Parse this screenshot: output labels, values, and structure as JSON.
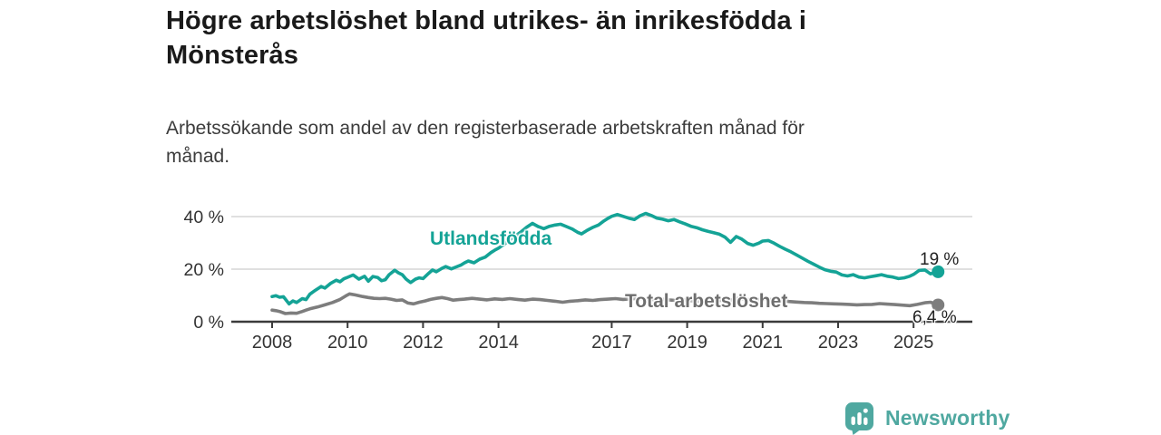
{
  "colors": {
    "accent_teal": "#14a396",
    "line_gray": "#7d7d7d",
    "label_gray": "#6e6e6e",
    "axis": "#3b3b3b",
    "grid": "#d6d6d6",
    "tick_text": "#333333",
    "title_text": "#1a1a1a",
    "brand_teal": "#4fa8a0"
  },
  "chart_data": {
    "type": "line",
    "title": "Högre arbetslöshet bland utrikes- än inrikesfödda i Mönsterås",
    "subtitle": "Arbetssökande som andel av den registerbaserade arbetskraften månad för månad.",
    "legend": "inline-labels-on-lines",
    "grid": true,
    "x_axis": {
      "tick_labels": [
        "2008",
        "2010",
        "2012",
        "2014",
        "2017",
        "2019",
        "2021",
        "2023",
        "2025"
      ],
      "tick_values": [
        2008,
        2010,
        2012,
        2014,
        2017,
        2019,
        2021,
        2023,
        2025
      ],
      "range": [
        2007.1,
        2026.5
      ]
    },
    "y_axis": {
      "unit": "%",
      "tick_labels": [
        "0 %",
        "20 %",
        "40 %"
      ],
      "tick_values": [
        0,
        20,
        40
      ],
      "range": [
        0,
        43.5
      ]
    },
    "series": [
      {
        "id": "utlandsfodda",
        "name": "Utlandsfödda",
        "color": "#14a396",
        "end_value": 19,
        "end_label": "19 %",
        "points": [
          [
            2008.0,
            9.6
          ],
          [
            2008.1,
            9.9
          ],
          [
            2008.2,
            9.3
          ],
          [
            2008.3,
            9.5
          ],
          [
            2008.45,
            6.8
          ],
          [
            2008.55,
            7.9
          ],
          [
            2008.65,
            7.3
          ],
          [
            2008.8,
            8.8
          ],
          [
            2008.9,
            8.4
          ],
          [
            2009.0,
            10.5
          ],
          [
            2009.15,
            12.0
          ],
          [
            2009.3,
            13.4
          ],
          [
            2009.4,
            12.8
          ],
          [
            2009.55,
            14.6
          ],
          [
            2009.7,
            15.8
          ],
          [
            2009.8,
            15.2
          ],
          [
            2009.9,
            16.3
          ],
          [
            2010.0,
            16.9
          ],
          [
            2010.15,
            17.8
          ],
          [
            2010.3,
            16.2
          ],
          [
            2010.45,
            17.3
          ],
          [
            2010.55,
            15.4
          ],
          [
            2010.67,
            17.2
          ],
          [
            2010.8,
            16.8
          ],
          [
            2010.9,
            15.6
          ],
          [
            2011.0,
            16.0
          ],
          [
            2011.1,
            17.9
          ],
          [
            2011.25,
            19.6
          ],
          [
            2011.35,
            18.6
          ],
          [
            2011.45,
            17.9
          ],
          [
            2011.55,
            16.2
          ],
          [
            2011.67,
            14.9
          ],
          [
            2011.8,
            16.2
          ],
          [
            2011.9,
            16.7
          ],
          [
            2012.0,
            16.4
          ],
          [
            2012.15,
            18.4
          ],
          [
            2012.25,
            19.7
          ],
          [
            2012.35,
            19.0
          ],
          [
            2012.5,
            20.3
          ],
          [
            2012.6,
            21.0
          ],
          [
            2012.75,
            20.1
          ],
          [
            2012.85,
            20.7
          ],
          [
            2013.0,
            21.5
          ],
          [
            2013.1,
            22.4
          ],
          [
            2013.2,
            23.1
          ],
          [
            2013.35,
            22.4
          ],
          [
            2013.5,
            23.8
          ],
          [
            2013.65,
            24.6
          ],
          [
            2013.8,
            26.3
          ],
          [
            2013.9,
            27.2
          ],
          [
            2014.0,
            28.0
          ],
          [
            2014.2,
            30.0
          ],
          [
            2014.4,
            32.2
          ],
          [
            2014.6,
            34.2
          ],
          [
            2014.75,
            36.0
          ],
          [
            2014.9,
            37.4
          ],
          [
            2015.05,
            36.2
          ],
          [
            2015.2,
            35.4
          ],
          [
            2015.35,
            36.3
          ],
          [
            2015.5,
            36.8
          ],
          [
            2015.65,
            37.1
          ],
          [
            2015.8,
            36.2
          ],
          [
            2015.95,
            35.3
          ],
          [
            2016.1,
            34.0
          ],
          [
            2016.2,
            33.4
          ],
          [
            2016.35,
            34.8
          ],
          [
            2016.5,
            35.9
          ],
          [
            2016.65,
            36.8
          ],
          [
            2016.8,
            38.4
          ],
          [
            2016.9,
            39.3
          ],
          [
            2017.0,
            40.1
          ],
          [
            2017.15,
            40.8
          ],
          [
            2017.3,
            40.1
          ],
          [
            2017.45,
            39.4
          ],
          [
            2017.6,
            38.9
          ],
          [
            2017.75,
            40.3
          ],
          [
            2017.9,
            41.2
          ],
          [
            2018.05,
            40.4
          ],
          [
            2018.2,
            39.4
          ],
          [
            2018.35,
            39.0
          ],
          [
            2018.5,
            38.4
          ],
          [
            2018.65,
            38.9
          ],
          [
            2018.8,
            38.0
          ],
          [
            2018.95,
            37.2
          ],
          [
            2019.1,
            36.3
          ],
          [
            2019.25,
            35.8
          ],
          [
            2019.4,
            35.0
          ],
          [
            2019.55,
            34.4
          ],
          [
            2019.7,
            33.9
          ],
          [
            2019.85,
            33.3
          ],
          [
            2020.0,
            32.2
          ],
          [
            2020.15,
            30.2
          ],
          [
            2020.3,
            32.4
          ],
          [
            2020.45,
            31.4
          ],
          [
            2020.6,
            29.8
          ],
          [
            2020.75,
            29.1
          ],
          [
            2020.9,
            29.9
          ],
          [
            2021.0,
            30.7
          ],
          [
            2021.15,
            30.9
          ],
          [
            2021.3,
            29.9
          ],
          [
            2021.45,
            28.7
          ],
          [
            2021.6,
            27.6
          ],
          [
            2021.75,
            26.6
          ],
          [
            2021.9,
            25.4
          ],
          [
            2022.05,
            24.2
          ],
          [
            2022.2,
            23.0
          ],
          [
            2022.35,
            21.9
          ],
          [
            2022.5,
            20.8
          ],
          [
            2022.65,
            19.8
          ],
          [
            2022.8,
            19.2
          ],
          [
            2022.95,
            18.9
          ],
          [
            2023.1,
            17.8
          ],
          [
            2023.25,
            17.4
          ],
          [
            2023.4,
            17.9
          ],
          [
            2023.55,
            17.0
          ],
          [
            2023.7,
            16.7
          ],
          [
            2023.85,
            17.1
          ],
          [
            2024.0,
            17.5
          ],
          [
            2024.15,
            17.9
          ],
          [
            2024.3,
            17.3
          ],
          [
            2024.45,
            17.0
          ],
          [
            2024.6,
            16.4
          ],
          [
            2024.75,
            16.7
          ],
          [
            2024.9,
            17.3
          ],
          [
            2025.0,
            18.0
          ],
          [
            2025.15,
            19.5
          ],
          [
            2025.3,
            19.7
          ],
          [
            2025.45,
            18.2
          ],
          [
            2025.65,
            19.0
          ]
        ]
      },
      {
        "id": "total",
        "name": "Total arbetslöshet",
        "color": "#7d7d7d",
        "end_value": 6.4,
        "end_label": "6,4 %",
        "points": [
          [
            2008.0,
            4.4
          ],
          [
            2008.1,
            4.2
          ],
          [
            2008.2,
            3.9
          ],
          [
            2008.35,
            3.1
          ],
          [
            2008.5,
            3.3
          ],
          [
            2008.65,
            3.2
          ],
          [
            2008.8,
            3.9
          ],
          [
            2008.9,
            4.4
          ],
          [
            2009.0,
            4.9
          ],
          [
            2009.2,
            5.6
          ],
          [
            2009.4,
            6.4
          ],
          [
            2009.6,
            7.3
          ],
          [
            2009.8,
            8.5
          ],
          [
            2009.95,
            9.8
          ],
          [
            2010.05,
            10.6
          ],
          [
            2010.2,
            10.2
          ],
          [
            2010.4,
            9.6
          ],
          [
            2010.55,
            9.2
          ],
          [
            2010.7,
            8.9
          ],
          [
            2010.85,
            8.8
          ],
          [
            2011.0,
            8.9
          ],
          [
            2011.15,
            8.6
          ],
          [
            2011.3,
            8.1
          ],
          [
            2011.45,
            8.3
          ],
          [
            2011.6,
            7.1
          ],
          [
            2011.75,
            6.8
          ],
          [
            2011.9,
            7.4
          ],
          [
            2012.05,
            7.9
          ],
          [
            2012.2,
            8.5
          ],
          [
            2012.35,
            8.9
          ],
          [
            2012.5,
            9.2
          ],
          [
            2012.65,
            8.8
          ],
          [
            2012.8,
            8.2
          ],
          [
            2012.95,
            8.4
          ],
          [
            2013.1,
            8.6
          ],
          [
            2013.3,
            8.9
          ],
          [
            2013.5,
            8.6
          ],
          [
            2013.7,
            8.3
          ],
          [
            2013.9,
            8.7
          ],
          [
            2014.1,
            8.5
          ],
          [
            2014.3,
            8.8
          ],
          [
            2014.5,
            8.5
          ],
          [
            2014.7,
            8.2
          ],
          [
            2014.9,
            8.6
          ],
          [
            2015.1,
            8.4
          ],
          [
            2015.3,
            8.1
          ],
          [
            2015.5,
            7.8
          ],
          [
            2015.7,
            7.4
          ],
          [
            2015.9,
            7.8
          ],
          [
            2016.1,
            8.0
          ],
          [
            2016.3,
            8.3
          ],
          [
            2016.5,
            8.1
          ],
          [
            2016.7,
            8.4
          ],
          [
            2016.9,
            8.6
          ],
          [
            2017.1,
            8.8
          ],
          [
            2017.3,
            8.5
          ],
          [
            2017.5,
            8.7
          ],
          [
            2017.7,
            8.9
          ],
          [
            2017.9,
            8.6
          ],
          [
            2018.1,
            8.4
          ],
          [
            2018.3,
            8.6
          ],
          [
            2018.5,
            8.3
          ],
          [
            2018.7,
            8.1
          ],
          [
            2018.9,
            8.3
          ],
          [
            2019.1,
            8.0
          ],
          [
            2019.3,
            7.8
          ],
          [
            2019.5,
            7.6
          ],
          [
            2019.7,
            7.9
          ],
          [
            2019.9,
            8.1
          ],
          [
            2020.1,
            8.0
          ],
          [
            2020.3,
            8.9
          ],
          [
            2020.5,
            8.6
          ],
          [
            2020.7,
            8.3
          ],
          [
            2020.9,
            8.5
          ],
          [
            2021.1,
            8.6
          ],
          [
            2021.3,
            8.3
          ],
          [
            2021.5,
            8.0
          ],
          [
            2021.7,
            7.7
          ],
          [
            2021.9,
            7.5
          ],
          [
            2022.1,
            7.3
          ],
          [
            2022.3,
            7.2
          ],
          [
            2022.5,
            7.0
          ],
          [
            2022.7,
            6.9
          ],
          [
            2022.9,
            6.8
          ],
          [
            2023.1,
            6.7
          ],
          [
            2023.3,
            6.6
          ],
          [
            2023.5,
            6.4
          ],
          [
            2023.7,
            6.5
          ],
          [
            2023.9,
            6.6
          ],
          [
            2024.1,
            6.9
          ],
          [
            2024.3,
            6.7
          ],
          [
            2024.5,
            6.5
          ],
          [
            2024.7,
            6.3
          ],
          [
            2024.9,
            6.1
          ],
          [
            2025.1,
            6.6
          ],
          [
            2025.3,
            7.2
          ],
          [
            2025.45,
            7.4
          ],
          [
            2025.65,
            6.4
          ]
        ]
      }
    ]
  },
  "branding": {
    "name": "Newsworthy",
    "icon": "newsworthy-chart-bubble-icon"
  }
}
